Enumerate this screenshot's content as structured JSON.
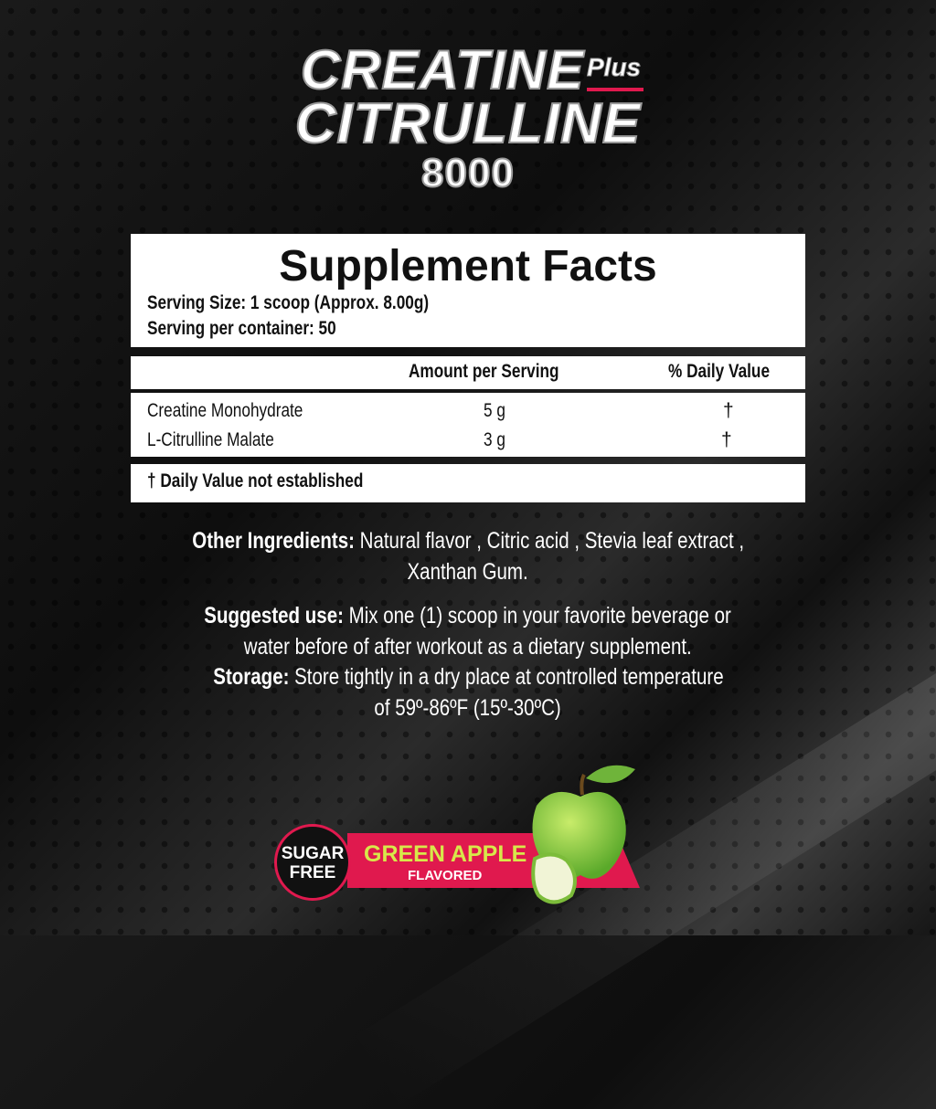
{
  "brand": {
    "line1": "CREATINE",
    "plus": "Plus",
    "line2": "CITRULLINE",
    "line3": "8000",
    "accent": "#e0194e"
  },
  "facts": {
    "heading": "Supplement Facts",
    "serving_size": "Serving Size: 1 scoop (Approx. 8.00g)",
    "servings": "Serving per container: 50",
    "col_amount": "Amount per Serving",
    "col_dv": "% Daily Value",
    "rows": [
      {
        "name": "Creatine Monohydrate",
        "amount": "5 g",
        "dv": "†"
      },
      {
        "name": "L-Citrulline Malate",
        "amount": "3 g",
        "dv": "†"
      }
    ],
    "footnote": "† Daily Value not established"
  },
  "other": {
    "label": "Other Ingredients:",
    "text1": "Natural flavor , Citric acid , Stevia leaf extract ,",
    "text2": "Xanthan Gum."
  },
  "use": {
    "label": "Suggested use:",
    "text1": "Mix one (1)  scoop in your favorite beverage or",
    "text2": "water before of after workout as a dietary supplement."
  },
  "storage": {
    "label": "Storage:",
    "text1": "Store tightly in a dry place at controlled temperature",
    "text2": "of 59º-86ºF (15º-30ºC)"
  },
  "badge": {
    "sugar": "SUGAR",
    "free": "FREE",
    "flavor": "GREEN APPLE",
    "flavored": "FLAVORED",
    "flavor_color": "#d7e84a"
  }
}
